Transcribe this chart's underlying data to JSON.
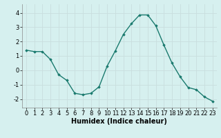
{
  "x": [
    0,
    1,
    2,
    3,
    4,
    5,
    6,
    7,
    8,
    9,
    10,
    11,
    12,
    13,
    14,
    15,
    16,
    17,
    18,
    19,
    20,
    21,
    22,
    23
  ],
  "y": [
    1.4,
    1.3,
    1.3,
    0.75,
    -0.3,
    -0.7,
    -1.6,
    -1.7,
    -1.6,
    -1.15,
    0.3,
    1.35,
    2.5,
    3.25,
    3.85,
    3.85,
    3.1,
    1.75,
    0.5,
    -0.45,
    -1.2,
    -1.35,
    -1.85,
    -2.15
  ],
  "line_color": "#1a7a6e",
  "marker": "D",
  "marker_size": 1.8,
  "background_color": "#d6f0ef",
  "grid_color": "#c8dede",
  "xlabel": "Humidex (Indice chaleur)",
  "xlim": [
    -0.5,
    23.5
  ],
  "ylim": [
    -2.6,
    4.6
  ],
  "xticks": [
    0,
    1,
    2,
    3,
    4,
    5,
    6,
    7,
    8,
    9,
    10,
    11,
    12,
    13,
    14,
    15,
    16,
    17,
    18,
    19,
    20,
    21,
    22,
    23
  ],
  "yticks": [
    -2,
    -1,
    0,
    1,
    2,
    3,
    4
  ],
  "xlabel_fontsize": 7,
  "tick_fontsize": 6,
  "linewidth": 1.0
}
